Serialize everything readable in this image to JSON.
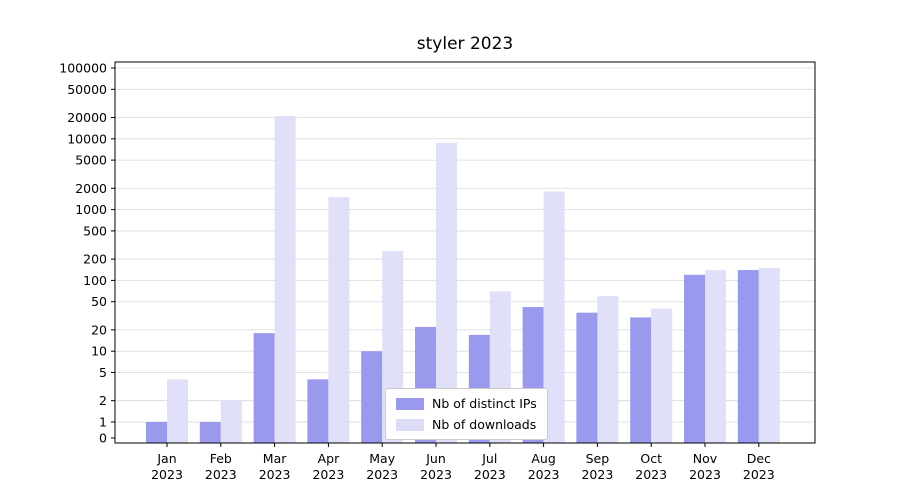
{
  "title": "styler 2023",
  "legend": {
    "items": [
      {
        "label": "Nb of distinct IPs",
        "color": "#9999ee"
      },
      {
        "label": "Nb of downloads",
        "color": "#ddddf8"
      }
    ]
  },
  "chart_data": {
    "type": "bar",
    "title": "styler 2023",
    "categories": [
      "Jan 2023",
      "Feb 2023",
      "Mar 2023",
      "Apr 2023",
      "May 2023",
      "Jun 2023",
      "Jul 2023",
      "Aug 2023",
      "Sep 2023",
      "Oct 2023",
      "Nov 2023",
      "Dec 2023"
    ],
    "series": [
      {
        "name": "Nb of distinct IPs",
        "color": "#9999ee",
        "values": [
          1,
          1,
          18,
          4,
          10,
          22,
          17,
          42,
          35,
          30,
          120,
          140
        ]
      },
      {
        "name": "Nb of downloads",
        "color": "#ddddf8",
        "values": [
          4,
          2,
          21000,
          1500,
          260,
          8800,
          70,
          1800,
          60,
          40,
          140,
          150
        ]
      }
    ],
    "yscale": "log-with-zero",
    "yticks": [
      0,
      1,
      2,
      5,
      10,
      20,
      50,
      100,
      200,
      500,
      1000,
      2000,
      5000,
      10000,
      20000,
      50000,
      100000
    ],
    "ylim": [
      0,
      100000
    ],
    "grid": true,
    "grid_color": "#d9d9d9",
    "axis_color": "#000000",
    "legend_position": "lower-center",
    "xlabel": "",
    "ylabel": ""
  }
}
